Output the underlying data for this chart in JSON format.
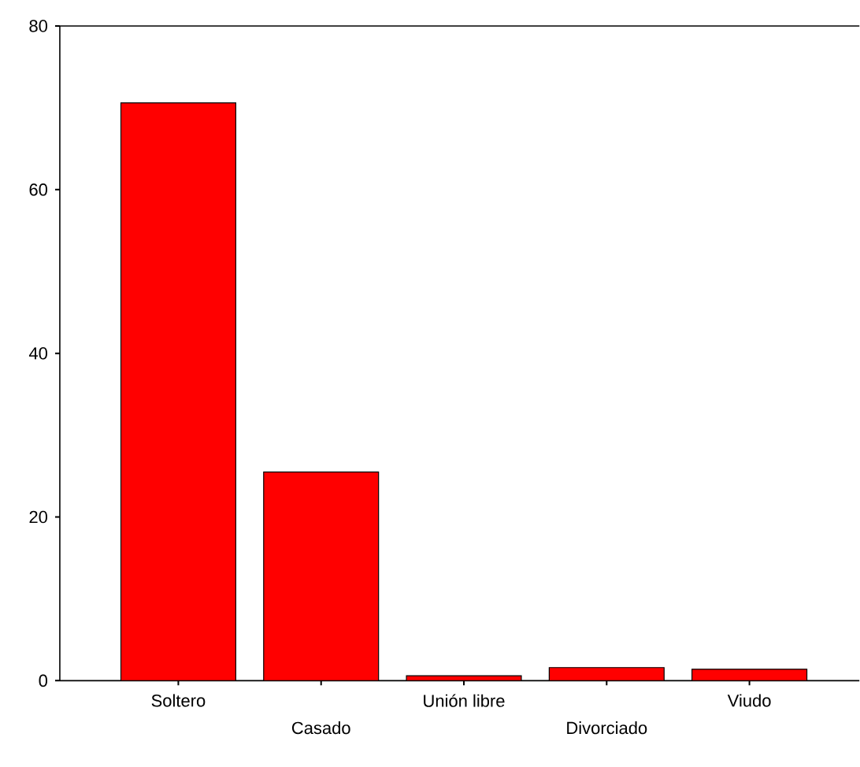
{
  "chart_data": {
    "type": "bar",
    "categories": [
      "Soltero",
      "Casado",
      "Unión libre",
      "Divorciado",
      "Viudo"
    ],
    "values": [
      70.6,
      25.5,
      0.6,
      1.6,
      1.4
    ],
    "color": "#ff0000",
    "ylim": [
      0,
      80
    ],
    "yticks": [
      0,
      20,
      40,
      60,
      80
    ]
  }
}
